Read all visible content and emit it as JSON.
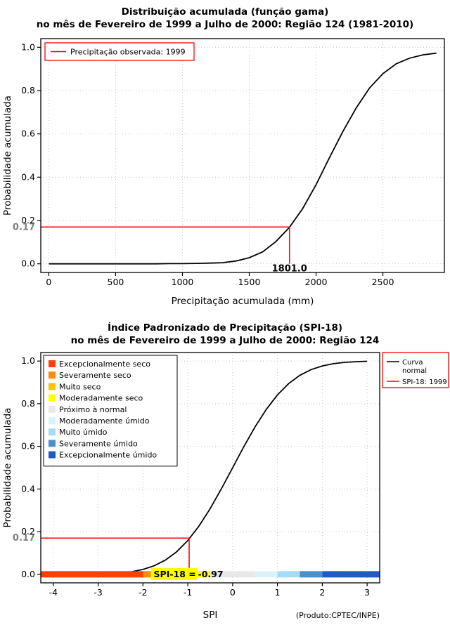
{
  "colors": {
    "background": "#ffffff",
    "grid": "#c8c8c8",
    "axis": "#000000",
    "accent_red": "#ff0000",
    "marker_gray": "#7f7f7f"
  },
  "chart_data": [
    {
      "type": "line",
      "title": "Distribuição acumulada (função gama)",
      "subtitle": "no mês de Fevereiro de 1999 a Julho de 2000: Região 124 (1981-2010)",
      "xlabel": "Precipitação acumulada (mm)",
      "ylabel": "Probabilidade acumulada",
      "xlim": [
        -60,
        2960
      ],
      "ylim": [
        -0.04,
        1.04
      ],
      "grid": true,
      "xticks": [
        {
          "v": 0,
          "label": "0"
        },
        {
          "v": 500,
          "label": "500"
        },
        {
          "v": 1000,
          "label": "1000"
        },
        {
          "v": 1500,
          "label": "1500"
        },
        {
          "v": 2000,
          "label": "2000"
        },
        {
          "v": 2500,
          "label": "2500"
        }
      ],
      "yticks": [
        {
          "v": 0,
          "label": "0.0"
        },
        {
          "v": 0.2,
          "label": "0.2"
        },
        {
          "v": 0.4,
          "label": "0.4"
        },
        {
          "v": 0.6,
          "label": "0.6"
        },
        {
          "v": 0.8,
          "label": "0.8"
        },
        {
          "v": 1,
          "label": "1.0"
        }
      ],
      "series": [
        {
          "name": "Distribuição gama acumulada",
          "color": "#000000",
          "x": [
            0,
            100,
            200,
            300,
            400,
            500,
            600,
            700,
            800,
            900,
            1000,
            1100,
            1200,
            1300,
            1400,
            1500,
            1600,
            1700,
            1800,
            1900,
            2000,
            2100,
            2200,
            2300,
            2400,
            2500,
            2600,
            2700,
            2800,
            2900
          ],
          "y": [
            0,
            0,
            0,
            0,
            0,
            0,
            0,
            0,
            0,
            0.001,
            0.001,
            0.002,
            0.003,
            0.005,
            0.013,
            0.028,
            0.055,
            0.103,
            0.168,
            0.255,
            0.365,
            0.49,
            0.61,
            0.72,
            0.812,
            0.878,
            0.924,
            0.95,
            0.965,
            0.973
          ]
        }
      ],
      "legend": {
        "border_color": "#ff0000",
        "items": [
          {
            "label": "Precipitação observada: 1999",
            "color": "#ff0000",
            "type": "line"
          }
        ]
      },
      "marker": {
        "x": 1801.0,
        "y": 0.17,
        "x_label": "1801.0",
        "y_label": "0.17",
        "color": "#ff0000",
        "label_color": "#7f7f7f"
      }
    },
    {
      "type": "line",
      "title": "Índice Padronizado de Precipitação (SPI-18)",
      "subtitle": "no mês de Fevereiro de 1999 a Julho de 2000: Região 124",
      "xlabel": "SPI",
      "ylabel": "Probabilidade acumulada",
      "footnote": "(Produto:CPTEC/INPE)",
      "xlim": [
        -4.28,
        3.28
      ],
      "ylim": [
        -0.04,
        1.04
      ],
      "grid": true,
      "xticks": [
        {
          "v": -4,
          "label": "-4"
        },
        {
          "v": -3,
          "label": "-3"
        },
        {
          "v": -2,
          "label": "-2"
        },
        {
          "v": -1,
          "label": "-1"
        },
        {
          "v": 0,
          "label": "0"
        },
        {
          "v": 1,
          "label": "1"
        },
        {
          "v": 2,
          "label": "2"
        },
        {
          "v": 3,
          "label": "3"
        }
      ],
      "yticks": [
        {
          "v": 0,
          "label": "0.0"
        },
        {
          "v": 0.2,
          "label": "0.2"
        },
        {
          "v": 0.4,
          "label": "0.4"
        },
        {
          "v": 0.6,
          "label": "0.6"
        },
        {
          "v": 0.8,
          "label": "0.8"
        },
        {
          "v": 1,
          "label": "1.0"
        }
      ],
      "series": [
        {
          "name": "Curva normal",
          "color": "#000000",
          "x": [
            -4,
            -3.75,
            -3.5,
            -3.25,
            -3,
            -2.75,
            -2.5,
            -2.25,
            -2,
            -1.75,
            -1.5,
            -1.25,
            -1,
            -0.75,
            -0.5,
            -0.25,
            0,
            0.25,
            0.5,
            0.75,
            1,
            1.25,
            1.5,
            1.75,
            2,
            2.25,
            2.5,
            2.75,
            3
          ],
          "y": [
            0,
            0.0001,
            0.0002,
            0.0006,
            0.0013,
            0.003,
            0.0062,
            0.0122,
            0.0228,
            0.0401,
            0.0668,
            0.1056,
            0.1587,
            0.2266,
            0.3085,
            0.4013,
            0.5,
            0.5987,
            0.6915,
            0.7734,
            0.8413,
            0.8944,
            0.9332,
            0.9599,
            0.9772,
            0.9878,
            0.9938,
            0.997,
            0.9987
          ]
        }
      ],
      "line_legend": {
        "border_color": "#ff0000",
        "items": [
          {
            "label": "Curva normal",
            "label_lines": [
              "Curva",
              "normal"
            ],
            "color": "#000000"
          },
          {
            "label": "SPI-18: 1999",
            "label_lines": [
              "SPI-18: 1999"
            ],
            "color": "#ff0000"
          }
        ]
      },
      "category_legend": {
        "border_color": "#000000",
        "items": [
          {
            "label": "Excepcionalmente seco",
            "color": "#ff4000"
          },
          {
            "label": "Severamente seco",
            "color": "#ff8c00"
          },
          {
            "label": "Muito seco",
            "color": "#ffc300"
          },
          {
            "label": "Moderadamente seco",
            "color": "#ffff00"
          },
          {
            "label": "Próximo à normal",
            "color": "#e8e8e8"
          },
          {
            "label": "Moderadamente úmido",
            "color": "#d9f2fb"
          },
          {
            "label": "Muito úmido",
            "color": "#a6dcf5"
          },
          {
            "label": "Severamente úmido",
            "color": "#4a90c9"
          },
          {
            "label": "Excepcionalmente úmido",
            "color": "#1f5cc0"
          }
        ]
      },
      "category_bar": {
        "segments": [
          {
            "from": -4,
            "to": -2,
            "color": "#ff4000"
          },
          {
            "from": -2,
            "to": -1.5,
            "color": "#ff8c00"
          },
          {
            "from": -1.5,
            "to": -1,
            "color": "#ffc300"
          },
          {
            "from": -1,
            "to": -0.5,
            "color": "#ffff00"
          },
          {
            "from": -0.5,
            "to": 0.5,
            "color": "#e8e8e8"
          },
          {
            "from": 0.5,
            "to": 1,
            "color": "#d9f2fb"
          },
          {
            "from": 1,
            "to": 1.5,
            "color": "#a6dcf5"
          },
          {
            "from": 1.5,
            "to": 2,
            "color": "#4a90c9"
          },
          {
            "from": 2,
            "to": 3,
            "color": "#1f5cc0"
          }
        ]
      },
      "marker": {
        "x": -0.97,
        "y": 0.17,
        "y_label": "0.17",
        "label_prefix": "SPI-18 =",
        "label_value": "-0.97",
        "label_bg": "#ffff00",
        "color": "#ff0000",
        "label_color": "#7f7f7f"
      }
    }
  ]
}
